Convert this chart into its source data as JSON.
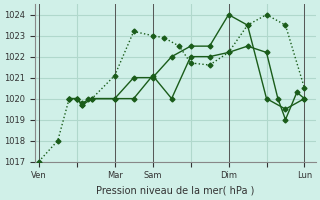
{
  "bg_color": "#d0f0e8",
  "grid_color": "#b0d8cc",
  "line_color": "#1a5c1a",
  "xlabel": "Pression niveau de la mer( hPa )",
  "ylim": [
    1017,
    1024.5
  ],
  "yticks": [
    1017,
    1018,
    1019,
    1020,
    1021,
    1022,
    1023,
    1024
  ],
  "xtick_labels": [
    "Ven",
    "",
    "Mar",
    "Sam",
    "",
    "Dim",
    "",
    "Lun"
  ],
  "xtick_positions": [
    0,
    1,
    2,
    3,
    4,
    5,
    6,
    7
  ],
  "vlines": [
    0,
    2,
    3,
    5,
    7
  ],
  "series": [
    {
      "x": [
        0.0,
        0.5,
        0.8,
        1.0,
        1.15,
        1.4,
        2.0,
        2.5,
        3.0,
        3.3,
        3.7,
        4.0,
        4.5,
        5.0,
        5.5,
        6.0,
        6.5,
        7.0
      ],
      "y": [
        1017.0,
        1018.0,
        1020.0,
        1020.0,
        1019.8,
        1020.0,
        1021.1,
        1023.2,
        1023.0,
        1022.9,
        1022.5,
        1021.7,
        1021.6,
        1022.2,
        1023.5,
        1024.0,
        1023.5,
        1020.5
      ],
      "linestyle": ":"
    },
    {
      "x": [
        0.8,
        1.0,
        1.15,
        1.4,
        2.0,
        2.5,
        3.0,
        3.5,
        4.0,
        4.5,
        5.0,
        5.5,
        6.0,
        6.3,
        6.5,
        6.8,
        7.0
      ],
      "y": [
        1020.0,
        1020.0,
        1019.7,
        1020.0,
        1020.0,
        1020.0,
        1021.1,
        1020.0,
        1022.0,
        1022.0,
        1022.2,
        1022.5,
        1022.2,
        1020.0,
        1019.0,
        1020.3,
        1020.0
      ],
      "linestyle": "-"
    },
    {
      "x": [
        0.8,
        1.0,
        1.15,
        1.3,
        2.0,
        2.5,
        3.0,
        3.5,
        4.0,
        4.5,
        5.0,
        5.5,
        6.0,
        6.5,
        7.0
      ],
      "y": [
        1020.0,
        1020.0,
        1019.7,
        1020.0,
        1020.0,
        1021.0,
        1021.0,
        1022.0,
        1022.5,
        1022.5,
        1024.0,
        1023.5,
        1020.0,
        1019.5,
        1020.0
      ],
      "linestyle": "-"
    }
  ]
}
